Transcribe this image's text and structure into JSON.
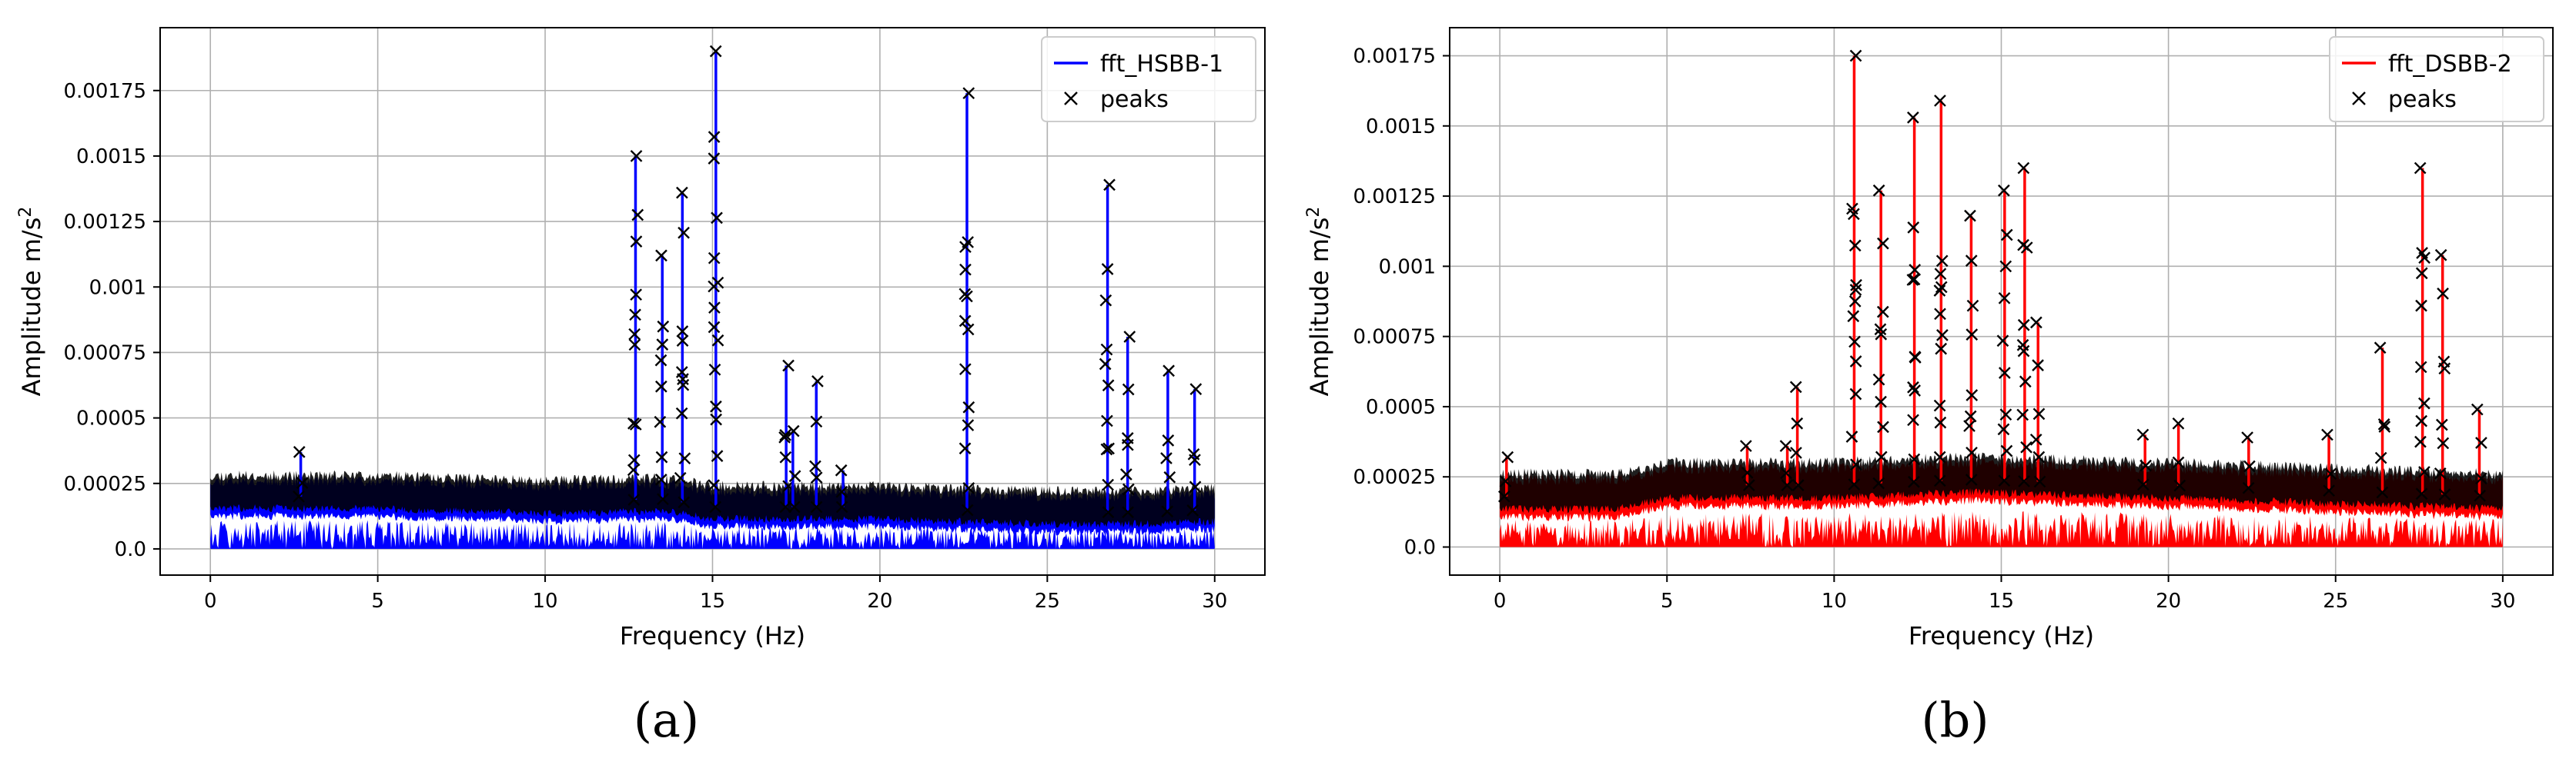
{
  "chart_data": [
    {
      "type": "line",
      "panel": "(a)",
      "xlabel": "Frequency (Hz)",
      "ylabel_base": "Amplitude m/s",
      "ylabel_sup": "2",
      "xlim": [
        -1.5,
        31.5
      ],
      "ylim": [
        -0.0001,
        0.00199
      ],
      "xticks": [
        0,
        5,
        10,
        15,
        20,
        25,
        30
      ],
      "xtick_labels": [
        "0",
        "5",
        "10",
        "15",
        "20",
        "25",
        "30"
      ],
      "yticks": [
        0,
        0.00025,
        0.0005,
        0.00075,
        0.001,
        0.00125,
        0.0015,
        0.00175
      ],
      "ytick_labels": [
        "0.0",
        "0.00025",
        "0.0005",
        "0.00075",
        "0.001",
        "0.00125",
        "0.0015",
        "0.00175"
      ],
      "grid": true,
      "legend_position": "top-right",
      "series": [
        {
          "name": "fft_HSBB-1",
          "kind": "line",
          "color": "#0000ff"
        },
        {
          "name": "peaks",
          "kind": "markers",
          "color": "#000000",
          "marker": "x"
        }
      ],
      "noise_floor": [
        [
          0,
          0.0002
        ],
        [
          5,
          0.0002
        ],
        [
          10,
          0.00018
        ],
        [
          13.5,
          0.00019
        ],
        [
          15,
          0.00016
        ],
        [
          20,
          0.00016
        ],
        [
          22,
          0.00015
        ],
        [
          25,
          0.00014
        ],
        [
          28,
          0.00014
        ],
        [
          30,
          0.00015
        ]
      ],
      "peaks": [
        {
          "x": 2.7,
          "y": 0.00037
        },
        {
          "x": 12.7,
          "y": 0.0015
        },
        {
          "x": 13.5,
          "y": 0.00112
        },
        {
          "x": 14.1,
          "y": 0.00136
        },
        {
          "x": 15.1,
          "y": 0.0019
        },
        {
          "x": 17.2,
          "y": 0.0007
        },
        {
          "x": 17.4,
          "y": 0.00045
        },
        {
          "x": 18.1,
          "y": 0.00064
        },
        {
          "x": 18.9,
          "y": 0.0003
        },
        {
          "x": 22.6,
          "y": 0.00174
        },
        {
          "x": 26.8,
          "y": 0.00139
        },
        {
          "x": 27.4,
          "y": 0.00081
        },
        {
          "x": 28.6,
          "y": 0.00068
        },
        {
          "x": 29.4,
          "y": 0.00061
        }
      ]
    },
    {
      "type": "line",
      "panel": "(b)",
      "xlabel": "Frequency (Hz)",
      "ylabel_base": "Amplitude m/s",
      "ylabel_sup": "2",
      "xlim": [
        -1.5,
        31.5
      ],
      "ylim": [
        -0.0001,
        0.00185
      ],
      "xticks": [
        0,
        5,
        10,
        15,
        20,
        25,
        30
      ],
      "xtick_labels": [
        "0",
        "5",
        "10",
        "15",
        "20",
        "25",
        "30"
      ],
      "yticks": [
        0,
        0.00025,
        0.0005,
        0.00075,
        0.001,
        0.00125,
        0.0015,
        0.00175
      ],
      "ytick_labels": [
        "0.0",
        "0.00025",
        "0.0005",
        "0.00075",
        "0.001",
        "0.00125",
        "0.0015",
        "0.00175"
      ],
      "grid": true,
      "legend_position": "top-right",
      "series": [
        {
          "name": "fft_DSBB-2",
          "kind": "line",
          "color": "#ff0000"
        },
        {
          "name": "peaks",
          "kind": "markers",
          "color": "#000000",
          "marker": "x"
        }
      ],
      "noise_floor": [
        [
          0,
          0.00018
        ],
        [
          3.5,
          0.00018
        ],
        [
          5,
          0.00022
        ],
        [
          10,
          0.00022
        ],
        [
          14,
          0.00024
        ],
        [
          20,
          0.00022
        ],
        [
          25,
          0.0002
        ],
        [
          30,
          0.00018
        ]
      ],
      "peaks": [
        {
          "x": 0.2,
          "y": 0.00032
        },
        {
          "x": 7.4,
          "y": 0.00036
        },
        {
          "x": 8.6,
          "y": 0.00036
        },
        {
          "x": 8.9,
          "y": 0.00057
        },
        {
          "x": 10.6,
          "y": 0.00175
        },
        {
          "x": 11.4,
          "y": 0.00127
        },
        {
          "x": 12.4,
          "y": 0.00153
        },
        {
          "x": 13.2,
          "y": 0.00159
        },
        {
          "x": 14.1,
          "y": 0.00118
        },
        {
          "x": 15.1,
          "y": 0.00127
        },
        {
          "x": 15.7,
          "y": 0.00135
        },
        {
          "x": 16.1,
          "y": 0.0008
        },
        {
          "x": 19.3,
          "y": 0.0004
        },
        {
          "x": 20.3,
          "y": 0.00044
        },
        {
          "x": 22.4,
          "y": 0.00039
        },
        {
          "x": 24.8,
          "y": 0.0004
        },
        {
          "x": 26.4,
          "y": 0.00071
        },
        {
          "x": 27.6,
          "y": 0.00135
        },
        {
          "x": 28.2,
          "y": 0.00104
        },
        {
          "x": 29.3,
          "y": 0.00049
        }
      ]
    }
  ]
}
